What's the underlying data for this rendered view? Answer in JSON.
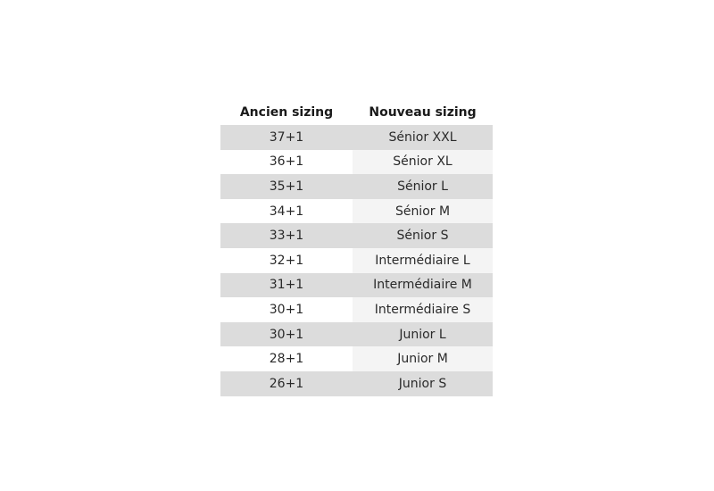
{
  "table": {
    "headers": [
      "Ancien sizing",
      "Nouveau sizing"
    ],
    "rows": [
      [
        "37+1",
        "Sénior XXL"
      ],
      [
        "36+1",
        "Sénior XL"
      ],
      [
        "35+1",
        "Sénior L"
      ],
      [
        "34+1",
        "Sénior M"
      ],
      [
        "33+1",
        "Sénior S"
      ],
      [
        "32+1",
        "Intermédiaire L"
      ],
      [
        "31+1",
        "Intermédiaire M"
      ],
      [
        "30+1",
        "Intermédiaire S"
      ],
      [
        "30+1",
        "Junior L"
      ],
      [
        "28+1",
        "Junior M"
      ],
      [
        "26+1",
        "Junior S"
      ]
    ]
  }
}
